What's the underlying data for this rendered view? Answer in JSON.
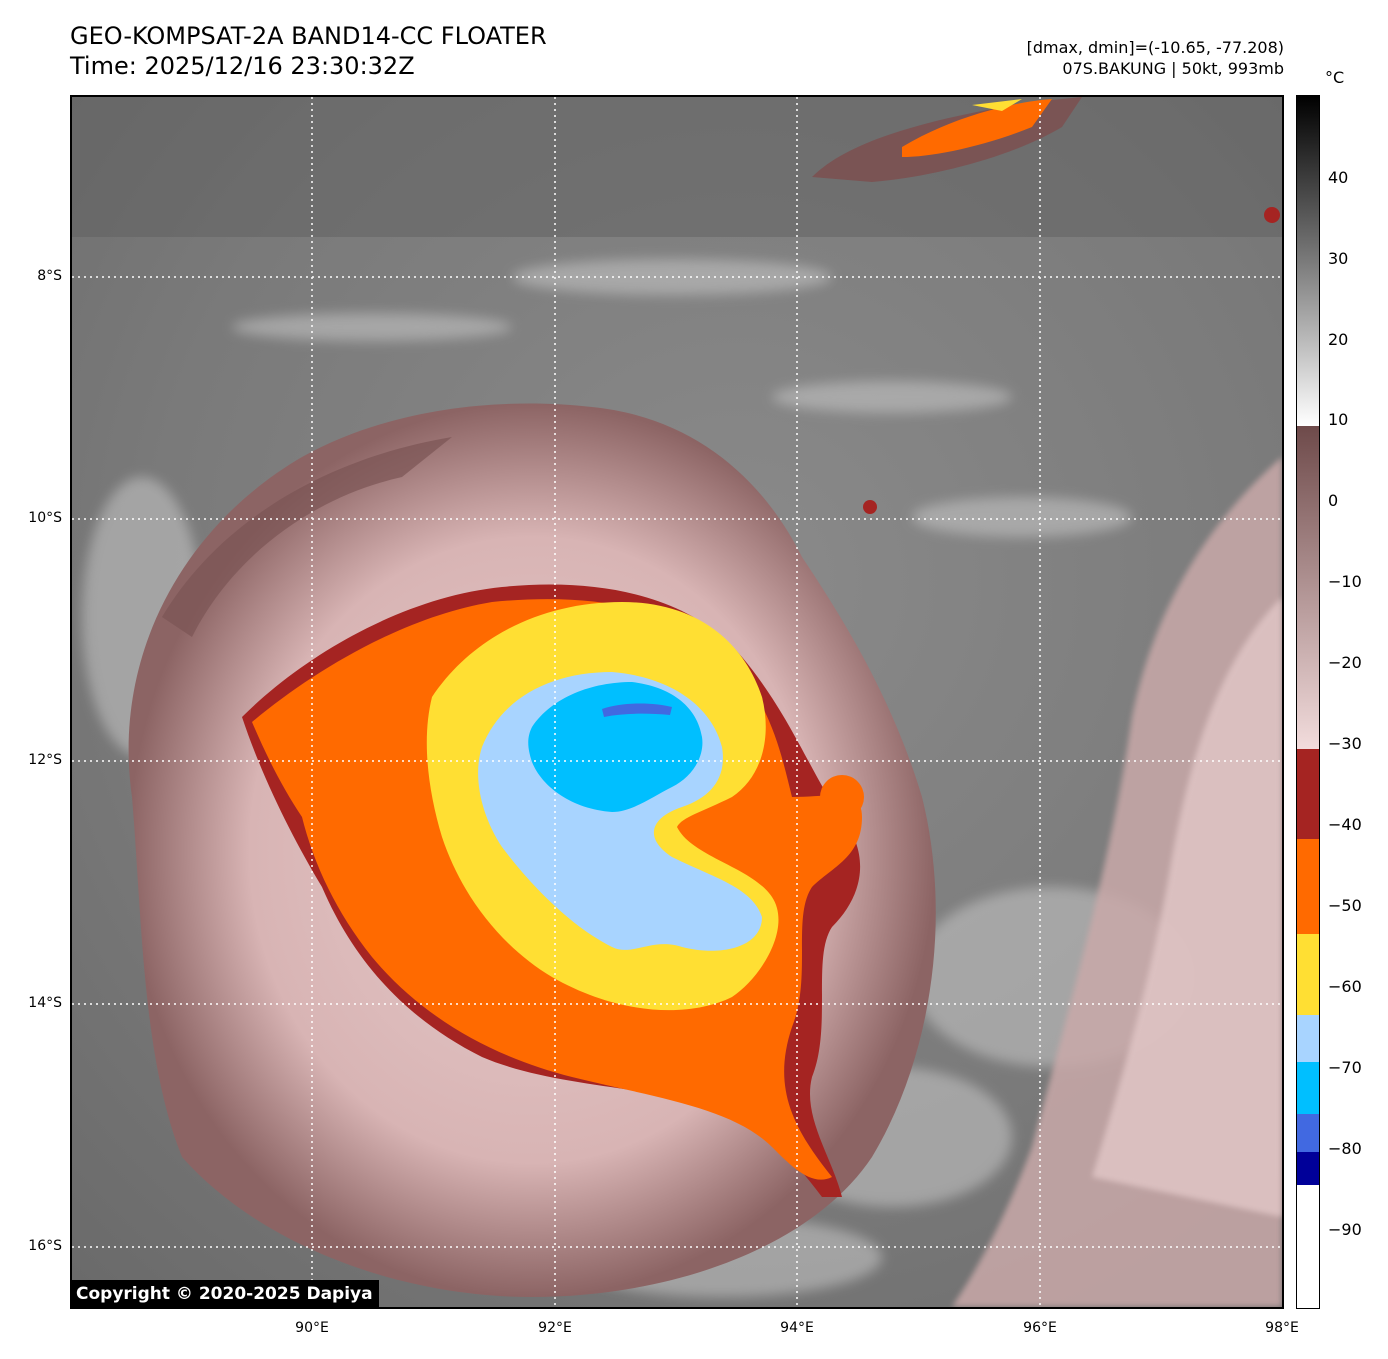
{
  "title": {
    "line1": "GEO-KOMPSAT-2A BAND14-CC FLOATER",
    "line2": "Time: 2025/12/16 23:30:32Z"
  },
  "info": {
    "dmax_dmin": "[dmax, dmin]=(-10.65, -77.208)",
    "storm": "07S.BAKUNG | 50kt, 993mb"
  },
  "map": {
    "lat_labels": [
      "8°S",
      "10°S",
      "12°S",
      "14°S",
      "16°S"
    ],
    "lon_labels": [
      "90°E",
      "92°E",
      "94°E",
      "96°E",
      "98°E"
    ],
    "grid": "dotted white"
  },
  "colorbar": {
    "unit": "°C",
    "ticks": [
      "40",
      "30",
      "20",
      "10",
      "0",
      "−10",
      "−20",
      "−30",
      "−40",
      "−50",
      "−60",
      "−70",
      "−80",
      "−90"
    ],
    "colors": {
      "warm": "#000000",
      "gray": "#9a9a9a",
      "white": "#ffffff",
      "brown": "#6e4a4a",
      "pink": "#ecd2d2",
      "darkred": "#a52422",
      "orange": "#ff6a00",
      "yellow": "#ffdf33",
      "lightblue": "#a8d4ff",
      "skyblue": "#00bfff",
      "royalblue": "#4169e1",
      "navy": "#000099"
    }
  },
  "copyright": "Copyright © 2020-2025 Dapiya"
}
